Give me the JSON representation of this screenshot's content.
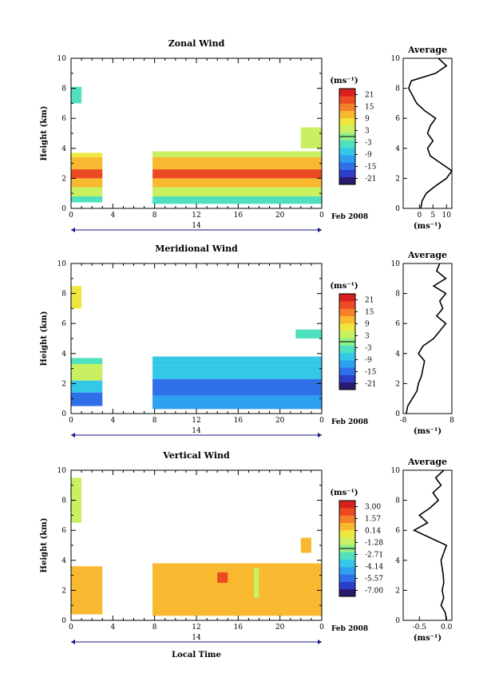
{
  "figure": {
    "date_label": "Feb 2008",
    "day_label": "14",
    "xlabel": "Local Time",
    "ylabel": "Height (km)",
    "units": "(ms⁻¹)",
    "avg_title": "Average",
    "x_ticks": [
      "0",
      "4",
      "8",
      "12",
      "16",
      "20",
      "0"
    ],
    "y_ticks": [
      "0",
      "2",
      "4",
      "6",
      "8",
      "10"
    ],
    "colormap": [
      "#2a1a6e",
      "#2b3fc8",
      "#2f6fe8",
      "#2ea0f0",
      "#33c8e8",
      "#4fe0c0",
      "#8ef08a",
      "#c8f060",
      "#f0e640",
      "#f8b830",
      "#f48028",
      "#ec4a22",
      "#d82020"
    ]
  },
  "chart_data": [
    {
      "type": "heatmap",
      "title": "Zonal Wind",
      "xlabel": "Local Time",
      "ylabel": "Height (km)",
      "xlim": [
        0,
        24
      ],
      "ylim": [
        0,
        10
      ],
      "colorbar_ticks": [
        "21",
        "15",
        "9",
        "3",
        "-3",
        "-9",
        "-15",
        "-21"
      ],
      "colorbar_range": [
        -24,
        24
      ],
      "blocks": [
        {
          "x": [
            0.0,
            1.0
          ],
          "y": [
            7.0,
            8.1
          ],
          "v": -5
        },
        {
          "x": [
            0.0,
            3.0
          ],
          "y": [
            3.4,
            3.7
          ],
          "v": 6
        },
        {
          "x": [
            0.0,
            3.0
          ],
          "y": [
            2.6,
            3.4
          ],
          "v": 12
        },
        {
          "x": [
            0.0,
            3.0
          ],
          "y": [
            2.0,
            2.6
          ],
          "v": 17
        },
        {
          "x": [
            0.0,
            3.0
          ],
          "y": [
            1.4,
            2.0
          ],
          "v": 10
        },
        {
          "x": [
            0.0,
            3.0
          ],
          "y": [
            0.8,
            1.4
          ],
          "v": 4
        },
        {
          "x": [
            0.0,
            3.0
          ],
          "y": [
            0.4,
            0.8
          ],
          "v": -4
        },
        {
          "x": [
            7.8,
            24.0
          ],
          "y": [
            3.4,
            3.8
          ],
          "v": 5
        },
        {
          "x": [
            7.8,
            24.0
          ],
          "y": [
            2.6,
            3.4
          ],
          "v": 12
        },
        {
          "x": [
            7.8,
            24.0
          ],
          "y": [
            2.0,
            2.6
          ],
          "v": 17
        },
        {
          "x": [
            7.8,
            24.0
          ],
          "y": [
            1.4,
            2.0
          ],
          "v": 10
        },
        {
          "x": [
            7.8,
            24.0
          ],
          "y": [
            0.8,
            1.4
          ],
          "v": 3
        },
        {
          "x": [
            7.8,
            24.0
          ],
          "y": [
            0.3,
            0.8
          ],
          "v": -3
        },
        {
          "x": [
            22.0,
            24.0
          ],
          "y": [
            4.0,
            5.4
          ],
          "v": 2
        }
      ],
      "average": {
        "xlabel": "(ms⁻¹)",
        "xlim": [
          -6,
          12
        ],
        "x_ticks": [
          "0",
          "5",
          "10"
        ],
        "x_tick_values": [
          0,
          5,
          10
        ],
        "height": [
          0.0,
          0.5,
          1.0,
          1.5,
          2.0,
          2.5,
          3.0,
          3.5,
          4.0,
          4.5,
          5.0,
          5.5,
          6.0,
          6.5,
          7.0,
          7.5,
          8.0,
          8.5,
          9.0,
          9.5,
          10.0
        ],
        "value": [
          0.5,
          1.0,
          2.5,
          6.0,
          10.0,
          12.0,
          8.0,
          4.0,
          3.0,
          5.0,
          3.0,
          4.0,
          6.0,
          2.0,
          -1.0,
          -2.5,
          -4.0,
          -3.0,
          6.0,
          10.0,
          7.0
        ]
      }
    },
    {
      "type": "heatmap",
      "title": "Meridional Wind",
      "xlabel": "Local Time",
      "ylabel": "Height (km)",
      "xlim": [
        0,
        24
      ],
      "ylim": [
        0,
        10
      ],
      "colorbar_ticks": [
        "21",
        "15",
        "9",
        "3",
        "-3",
        "-9",
        "-15",
        "-21"
      ],
      "colorbar_range": [
        -24,
        24
      ],
      "blocks": [
        {
          "x": [
            0.0,
            1.0
          ],
          "y": [
            7.0,
            8.5
          ],
          "v": 7
        },
        {
          "x": [
            0.0,
            3.0
          ],
          "y": [
            3.3,
            3.7
          ],
          "v": -4
        },
        {
          "x": [
            0.0,
            3.0
          ],
          "y": [
            2.2,
            3.3
          ],
          "v": 2
        },
        {
          "x": [
            0.0,
            3.0
          ],
          "y": [
            1.4,
            2.2
          ],
          "v": -8
        },
        {
          "x": [
            0.0,
            3.0
          ],
          "y": [
            0.5,
            1.4
          ],
          "v": -15
        },
        {
          "x": [
            7.8,
            24.0
          ],
          "y": [
            3.2,
            3.8
          ],
          "v": -6
        },
        {
          "x": [
            7.8,
            24.0
          ],
          "y": [
            2.3,
            3.2
          ],
          "v": -9
        },
        {
          "x": [
            7.8,
            24.0
          ],
          "y": [
            1.2,
            2.3
          ],
          "v": -14
        },
        {
          "x": [
            7.8,
            24.0
          ],
          "y": [
            0.3,
            1.2
          ],
          "v": -11
        },
        {
          "x": [
            21.5,
            24.0
          ],
          "y": [
            5.0,
            5.6
          ],
          "v": -4
        }
      ],
      "average": {
        "xlabel": "(ms⁻¹)",
        "xlim": [
          -8,
          8
        ],
        "x_ticks": [
          "-8",
          "8"
        ],
        "x_tick_values": [
          -8,
          8
        ],
        "height": [
          0.0,
          0.5,
          1.0,
          1.5,
          2.0,
          2.5,
          3.0,
          3.5,
          4.0,
          4.5,
          5.0,
          5.5,
          6.0,
          6.5,
          7.0,
          7.5,
          8.0,
          8.5,
          9.0,
          9.5,
          10.0
        ],
        "value": [
          -7.0,
          -6.5,
          -5.0,
          -3.5,
          -3.0,
          -2.0,
          -1.5,
          -1.0,
          -3.0,
          -1.5,
          2.0,
          4.0,
          6.0,
          3.0,
          5.0,
          4.0,
          6.0,
          2.0,
          6.0,
          3.0,
          4.0
        ]
      }
    },
    {
      "type": "heatmap",
      "title": "Vertical Wind",
      "xlabel": "Local Time",
      "ylabel": "Height (km)",
      "xlim": [
        0,
        24
      ],
      "ylim": [
        0,
        10
      ],
      "colorbar_ticks": [
        "3.00",
        "1.57",
        "0.14",
        "-1.28",
        "-2.71",
        "-4.14",
        "-5.57",
        "-7.00"
      ],
      "colorbar_range": [
        -7.7,
        3.7
      ],
      "blocks": [
        {
          "x": [
            0.0,
            1.0
          ],
          "y": [
            6.5,
            9.5
          ],
          "v": -0.8
        },
        {
          "x": [
            0.0,
            3.0
          ],
          "y": [
            0.4,
            3.6
          ],
          "v": 0.5
        },
        {
          "x": [
            7.8,
            24.0
          ],
          "y": [
            0.3,
            3.8
          ],
          "v": 0.6
        },
        {
          "x": [
            14.0,
            15.0
          ],
          "y": [
            2.5,
            3.2
          ],
          "v": 2.0
        },
        {
          "x": [
            17.5,
            18.0
          ],
          "y": [
            1.5,
            3.5
          ],
          "v": -1.0
        },
        {
          "x": [
            22.0,
            23.0
          ],
          "y": [
            4.5,
            5.5
          ],
          "v": 0.5
        }
      ],
      "average": {
        "xlabel": "(ms⁻¹)",
        "xlim": [
          -0.8,
          0.1
        ],
        "x_ticks": [
          "-0.5",
          "0.0"
        ],
        "x_tick_values": [
          -0.5,
          0.0
        ],
        "height": [
          0.0,
          0.5,
          1.0,
          1.5,
          2.0,
          2.5,
          3.0,
          3.5,
          4.0,
          4.5,
          5.0,
          5.5,
          6.0,
          6.5,
          7.0,
          7.5,
          8.0,
          8.5,
          9.0,
          9.5,
          10.0
        ],
        "value": [
          0.0,
          -0.02,
          -0.1,
          -0.05,
          -0.08,
          -0.05,
          -0.06,
          -0.08,
          -0.1,
          -0.05,
          0.0,
          -0.3,
          -0.6,
          -0.35,
          -0.5,
          -0.3,
          -0.15,
          -0.25,
          -0.1,
          -0.2,
          -0.05
        ]
      }
    }
  ]
}
